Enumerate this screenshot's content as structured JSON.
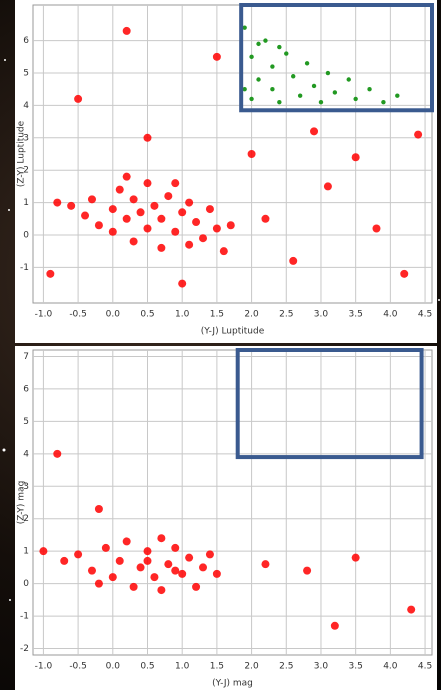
{
  "chart_data": [
    {
      "type": "scatter",
      "x_label": "(Y-J) Luptitude",
      "y_label": "(Z-Y) Luptitude",
      "xlim": [
        -1.15,
        4.6
      ],
      "ylim": [
        -2.1,
        7.1
      ],
      "xticks": [
        {
          "value": -1,
          "label": "-1.0"
        },
        -0.5,
        {
          "value": 0,
          "label": "0.0"
        },
        0.5,
        {
          "value": 1,
          "label": "1.0"
        },
        1.5,
        {
          "value": 2,
          "label": "2.0"
        },
        2.5,
        {
          "value": 3,
          "label": "3.0"
        },
        3.5,
        {
          "value": 4,
          "label": "4.0"
        },
        4.5
      ],
      "yticks": [
        -1,
        0,
        1,
        2,
        3,
        4,
        5,
        6
      ],
      "grid": true,
      "series": [
        {
          "color": "#ff0000",
          "x": [
            -0.6,
            -0.4,
            -0.3,
            -0.2,
            0,
            0,
            0.1,
            0.2,
            0.3,
            0.3,
            0.4,
            0.5,
            0.5,
            0.6,
            0.7,
            0.7,
            0.8,
            0.9,
            1.0,
            1.1,
            1.1,
            1.2,
            1.3,
            1.4,
            1.5,
            1.6,
            -0.8,
            0.2,
            0.9,
            1.7,
            2.2,
            2.6,
            3.1,
            3.8,
            4.2,
            2.0,
            2.9,
            0.5,
            -0.5,
            1.5,
            0.2,
            3.5,
            1.0,
            -0.9,
            4.4
          ],
          "y": [
            0.9,
            0.6,
            1.1,
            0.3,
            0.8,
            0.1,
            1.4,
            0.5,
            -0.2,
            1.1,
            0.7,
            0.2,
            1.6,
            0.9,
            -0.4,
            0.5,
            1.2,
            0.1,
            0.7,
            -0.3,
            1.0,
            0.4,
            -0.1,
            0.8,
            0.2,
            -0.5,
            1.0,
            1.8,
            1.6,
            0.3,
            0.5,
            -0.8,
            1.5,
            0.2,
            -1.2,
            2.5,
            3.2,
            3.0,
            4.2,
            5.5,
            6.3,
            2.4,
            -1.5,
            -1.2,
            3.1
          ]
        },
        {
          "color": "#229922",
          "x": [
            1.9,
            2.0,
            2.1,
            2.0,
            2.2,
            2.3,
            2.3,
            2.4,
            2.5,
            2.6,
            2.7,
            2.8,
            2.9,
            3.0,
            3.1,
            3.2,
            3.4,
            3.5,
            3.7,
            3.9,
            4.1,
            2.1,
            2.4,
            1.9
          ],
          "y": [
            6.4,
            5.5,
            4.8,
            4.2,
            6.0,
            5.2,
            4.5,
            4.1,
            5.6,
            4.9,
            4.3,
            5.3,
            4.6,
            4.1,
            5.0,
            4.4,
            4.8,
            4.2,
            4.5,
            4.1,
            4.3,
            5.9,
            5.8,
            4.5
          ]
        }
      ],
      "highlight_box": {
        "x": [
          1.85,
          4.6
        ],
        "y": [
          3.85,
          7.1
        ],
        "color": "#3a5a8f"
      }
    },
    {
      "type": "scatter",
      "x_label": "(Y-J) mag",
      "y_label": "(Z-Y) mag",
      "xlim": [
        -1.15,
        4.6
      ],
      "ylim": [
        -2.2,
        7.2
      ],
      "xticks": [
        {
          "value": -1,
          "label": "-1.0"
        },
        -0.5,
        {
          "value": 0,
          "label": "0.0"
        },
        0.5,
        {
          "value": 1,
          "label": "1.0"
        },
        1.5,
        {
          "value": 2,
          "label": "2.0"
        },
        2.5,
        {
          "value": 3,
          "label": "3.0"
        },
        3.5,
        {
          "value": 4,
          "label": "4.0"
        },
        4.5
      ],
      "yticks": [
        -2,
        -1,
        0,
        1,
        2,
        3,
        4,
        5,
        6,
        7
      ],
      "grid": true,
      "series": [
        {
          "color": "#ff0000",
          "x": [
            -1.0,
            -0.7,
            -0.5,
            -0.3,
            -0.1,
            0,
            0.1,
            0.2,
            0.3,
            0.4,
            0.5,
            0.6,
            0.7,
            0.7,
            0.8,
            0.9,
            1.0,
            1.1,
            1.2,
            1.3,
            1.4,
            1.5,
            -0.2,
            0.5,
            0.9,
            2.2,
            2.8,
            3.5,
            4.3,
            -0.8,
            -0.2,
            3.2
          ],
          "y": [
            1.0,
            0.7,
            0.9,
            0.4,
            1.1,
            0.2,
            0.7,
            1.3,
            -0.1,
            0.5,
            1.0,
            0.2,
            1.4,
            -0.2,
            0.6,
            1.1,
            0.3,
            0.8,
            -0.1,
            0.5,
            0.9,
            0.3,
            0.0,
            0.7,
            0.4,
            0.6,
            0.4,
            0.8,
            -0.8,
            4.0,
            2.3,
            -1.3
          ]
        }
      ],
      "highlight_box": {
        "x": [
          1.8,
          4.45
        ],
        "y": [
          3.9,
          7.2
        ],
        "color": "#3a5a8f"
      }
    }
  ]
}
